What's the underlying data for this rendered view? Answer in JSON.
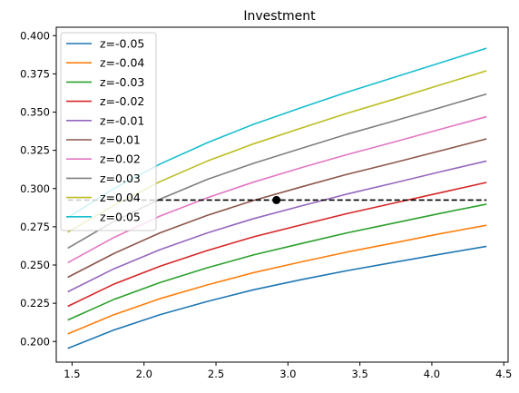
{
  "chart_data": {
    "type": "line",
    "title": "Investment",
    "xlabel": "",
    "ylabel": "",
    "xlim": [
      1.39,
      4.53
    ],
    "ylim": [
      0.1865,
      0.4055
    ],
    "xticks": [
      1.5,
      2.0,
      2.5,
      3.0,
      3.5,
      4.0,
      4.5
    ],
    "xtick_labels": [
      "1.5",
      "2.0",
      "2.5",
      "3.0",
      "3.5",
      "4.0",
      "4.5"
    ],
    "yticks": [
      0.2,
      0.225,
      0.25,
      0.275,
      0.3,
      0.325,
      0.35,
      0.375,
      0.4
    ],
    "ytick_labels": [
      "0.200",
      "0.225",
      "0.250",
      "0.275",
      "0.300",
      "0.325",
      "0.350",
      "0.375",
      "0.400"
    ],
    "grid": false,
    "legend_position": "top-left",
    "x": [
      1.47,
      1.79,
      2.11,
      2.44,
      2.76,
      3.09,
      3.41,
      3.74,
      4.06,
      4.38
    ],
    "series": [
      {
        "name": "z=-0.05",
        "color": "#1f77b4",
        "values": [
          0.1955,
          0.2075,
          0.2175,
          0.2262,
          0.2338,
          0.2404,
          0.2463,
          0.2518,
          0.2571,
          0.2622
        ]
      },
      {
        "name": "z=-0.04",
        "color": "#ff7f0e",
        "values": [
          0.205,
          0.2175,
          0.228,
          0.237,
          0.245,
          0.252,
          0.2585,
          0.2645,
          0.2705,
          0.276
        ]
      },
      {
        "name": "z=-0.03",
        "color": "#2ca02c",
        "values": [
          0.214,
          0.2275,
          0.2385,
          0.2482,
          0.2566,
          0.264,
          0.271,
          0.2775,
          0.2838,
          0.2898
        ]
      },
      {
        "name": "z=-0.02",
        "color": "#d62728",
        "values": [
          0.223,
          0.2375,
          0.2492,
          0.2595,
          0.2684,
          0.2762,
          0.2836,
          0.2906,
          0.2973,
          0.304
        ]
      },
      {
        "name": "z=-0.01",
        "color": "#9467bd",
        "values": [
          0.2325,
          0.2475,
          0.26,
          0.271,
          0.2803,
          0.2886,
          0.2964,
          0.3037,
          0.311,
          0.318
        ]
      },
      {
        "name": "z=0.01",
        "color": "#8c564b",
        "values": [
          0.242,
          0.2575,
          0.271,
          0.2825,
          0.2922,
          0.301,
          0.3093,
          0.317,
          0.3247,
          0.3325
        ]
      },
      {
        "name": "z=0.02",
        "color": "#e377c2",
        "values": [
          0.2515,
          0.268,
          0.282,
          0.294,
          0.3042,
          0.3136,
          0.3222,
          0.3305,
          0.3388,
          0.347
        ]
      },
      {
        "name": "z=0.03",
        "color": "#7f7f7f",
        "values": [
          0.261,
          0.2785,
          0.293,
          0.306,
          0.3165,
          0.3262,
          0.3355,
          0.3443,
          0.353,
          0.3618
        ]
      },
      {
        "name": "z=0.04",
        "color": "#bcbd22",
        "values": [
          0.2715,
          0.289,
          0.3045,
          0.318,
          0.3292,
          0.3395,
          0.3492,
          0.3585,
          0.3678,
          0.377
        ]
      },
      {
        "name": "z=0.05",
        "color": "#17becf",
        "values": [
          0.281,
          0.3,
          0.316,
          0.33,
          0.342,
          0.3528,
          0.363,
          0.3728,
          0.3823,
          0.3918
        ]
      }
    ],
    "reference_line": {
      "y": 0.2925,
      "x_range": [
        1.47,
        4.38
      ],
      "color": "#000000",
      "style": "dashed"
    },
    "marker_point": {
      "x": 2.92,
      "y": 0.2925,
      "color": "#000000"
    }
  }
}
